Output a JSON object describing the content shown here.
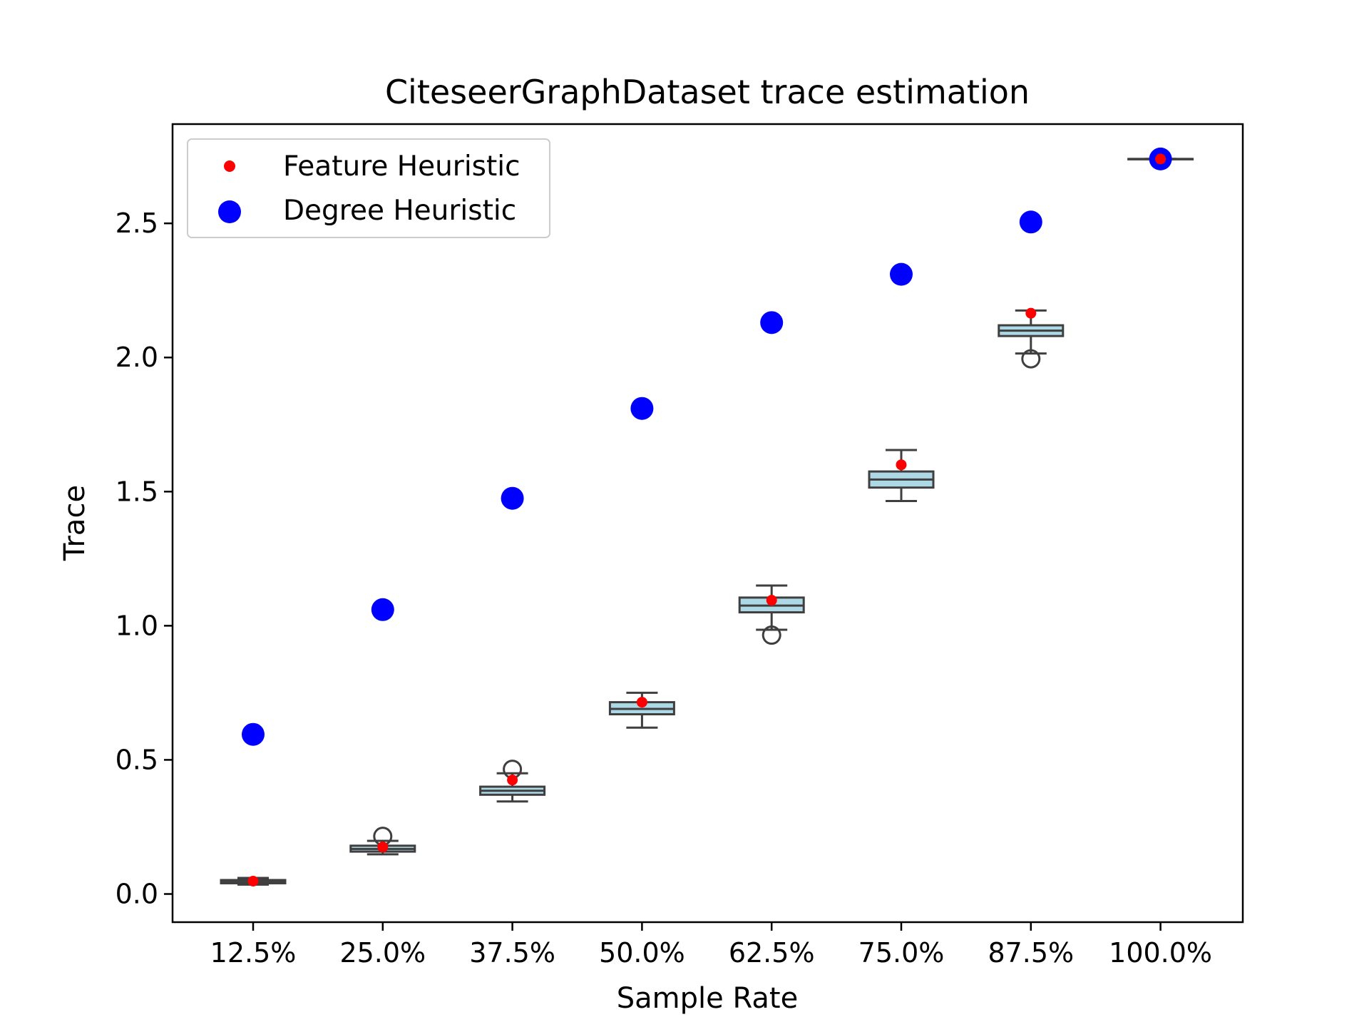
{
  "chart_data": {
    "type": "box",
    "title": "CiteseerGraphDataset trace estimation",
    "xlabel": "Sample Rate",
    "ylabel": "Trace",
    "categories": [
      "12.5%",
      "25.0%",
      "37.5%",
      "50.0%",
      "62.5%",
      "75.0%",
      "87.5%",
      "100.0%"
    ],
    "ylim": [
      -0.105,
      2.87
    ],
    "yticks": [
      0.0,
      0.5,
      1.0,
      1.5,
      2.0,
      2.5
    ],
    "ytick_labels": [
      "0.0",
      "0.5",
      "1.0",
      "1.5",
      "2.0",
      "2.5"
    ],
    "boxes": [
      {
        "whisker_low": 0.035,
        "q1": 0.04,
        "median": 0.045,
        "q3": 0.052,
        "whisker_high": 0.06,
        "outliers": []
      },
      {
        "whisker_low": 0.148,
        "q1": 0.158,
        "median": 0.168,
        "q3": 0.18,
        "whisker_high": 0.198,
        "outliers": [
          0.215
        ]
      },
      {
        "whisker_low": 0.345,
        "q1": 0.37,
        "median": 0.385,
        "q3": 0.4,
        "whisker_high": 0.45,
        "outliers": [
          0.465
        ]
      },
      {
        "whisker_low": 0.62,
        "q1": 0.67,
        "median": 0.69,
        "q3": 0.715,
        "whisker_high": 0.75,
        "outliers": []
      },
      {
        "whisker_low": 0.985,
        "q1": 1.05,
        "median": 1.075,
        "q3": 1.105,
        "whisker_high": 1.15,
        "outliers": [
          0.965
        ]
      },
      {
        "whisker_low": 1.465,
        "q1": 1.515,
        "median": 1.545,
        "q3": 1.575,
        "whisker_high": 1.655,
        "outliers": []
      },
      {
        "whisker_low": 2.015,
        "q1": 2.08,
        "median": 2.1,
        "q3": 2.12,
        "whisker_high": 2.175,
        "outliers": [
          1.995
        ]
      },
      {
        "whisker_low": 2.74,
        "q1": 2.74,
        "median": 2.74,
        "q3": 2.74,
        "whisker_high": 2.74,
        "outliers": []
      }
    ],
    "series": [
      {
        "name": "Feature Heuristic",
        "color": "#ff0000",
        "marker": "small-dot",
        "values": [
          0.048,
          0.175,
          0.425,
          0.715,
          1.095,
          1.6,
          2.165,
          2.74
        ]
      },
      {
        "name": "Degree Heuristic",
        "color": "#0000ff",
        "marker": "large-dot",
        "values": [
          0.595,
          1.06,
          1.475,
          1.81,
          2.13,
          2.31,
          2.505,
          2.74
        ]
      }
    ],
    "box_fill": "#add8e6",
    "box_edge": "#3f3f3f",
    "legend_position": "upper-left",
    "grid": false
  }
}
